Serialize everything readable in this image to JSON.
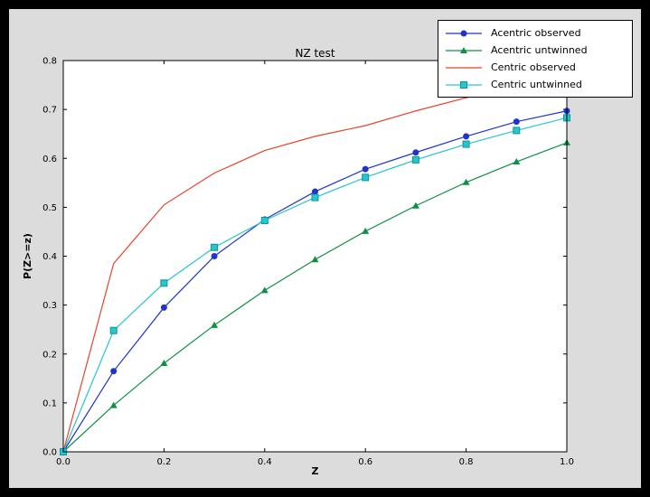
{
  "window": {
    "background": "#000000"
  },
  "figure": {
    "background": "#dcdcdc"
  },
  "chart_data": {
    "type": "line",
    "title": "NZ test",
    "xlabel": "Z",
    "ylabel": "P(Z>=z)",
    "xlim": [
      0.0,
      1.0
    ],
    "ylim": [
      0.0,
      0.8
    ],
    "xticks": [
      0.0,
      0.2,
      0.4,
      0.6,
      0.8,
      1.0
    ],
    "yticks": [
      0.0,
      0.1,
      0.2,
      0.3,
      0.4,
      0.5,
      0.6,
      0.7,
      0.8
    ],
    "grid": false,
    "legend_position": "upper right, overlapping top-right of axes",
    "x": [
      0.0,
      0.1,
      0.2,
      0.3,
      0.4,
      0.5,
      0.6,
      0.7,
      0.8,
      0.9,
      1.0
    ],
    "series": [
      {
        "name": "Acentric observed",
        "color": "#2233cc",
        "marker": "circle",
        "values": [
          0.0,
          0.165,
          0.295,
          0.4,
          0.475,
          0.532,
          0.578,
          0.612,
          0.645,
          0.675,
          0.697
        ]
      },
      {
        "name": "Acentric untwinned",
        "color": "#0e9044",
        "marker": "triangle",
        "values": [
          0.0,
          0.095,
          0.181,
          0.259,
          0.33,
          0.393,
          0.451,
          0.503,
          0.551,
          0.593,
          0.632
        ]
      },
      {
        "name": "Centric observed",
        "color": "#e8432c",
        "marker": "none",
        "values": [
          0.0,
          0.385,
          0.505,
          0.57,
          0.616,
          0.645,
          0.667,
          0.697,
          0.724,
          0.748,
          0.762
        ]
      },
      {
        "name": "Centric untwinned",
        "color": "#27c6cf",
        "marker": "square",
        "marker_edge": "#0f949b",
        "values": [
          0.0,
          0.248,
          0.345,
          0.418,
          0.473,
          0.52,
          0.561,
          0.597,
          0.629,
          0.657,
          0.683
        ]
      }
    ]
  }
}
